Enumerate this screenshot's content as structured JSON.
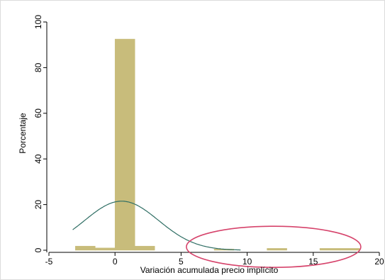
{
  "chart_data": {
    "type": "bar",
    "title": "",
    "xlabel": "Variación acumulada precio implícito",
    "ylabel": "Porcentaje",
    "xlim": [
      -5,
      20
    ],
    "ylim": [
      0,
      100
    ],
    "x_ticks": [
      -5,
      0,
      5,
      10,
      15,
      20
    ],
    "y_ticks": [
      0,
      20,
      40,
      60,
      80,
      100
    ],
    "x_tick_labels": [
      "-5",
      "0",
      "5",
      "10",
      "15",
      "20"
    ],
    "y_tick_labels": [
      "0",
      "20",
      "40",
      "60",
      "80",
      "100"
    ],
    "bin_width": 1.5,
    "bins": [
      {
        "x_start": -3.0,
        "x_end": -1.5,
        "value": 1.8
      },
      {
        "x_start": -1.5,
        "x_end": 0.0,
        "value": 1.0
      },
      {
        "x_start": 0.0,
        "x_end": 1.5,
        "value": 92.5
      },
      {
        "x_start": 1.5,
        "x_end": 3.0,
        "value": 1.8
      },
      {
        "x_start": 7.5,
        "x_end": 9.0,
        "value": 0.5
      },
      {
        "x_start": 11.5,
        "x_end": 13.0,
        "value": 0.8
      },
      {
        "x_start": 15.5,
        "x_end": 17.0,
        "value": 0.8
      },
      {
        "x_start": 17.0,
        "x_end": 18.5,
        "value": 0.8
      }
    ],
    "density_curve": {
      "type": "normal",
      "mean": 0.5,
      "sd": 2.8,
      "peak": 21.5,
      "x_range": [
        -3.2,
        9.5
      ]
    },
    "annotation": {
      "type": "ellipse",
      "center": [
        12.0,
        1.5
      ],
      "radius_x_units": 6.6,
      "radius_y_units": 9.0
    },
    "grid": false,
    "colors": {
      "bar_fill": "#c8bc7b",
      "curve": "#2f6e64",
      "ellipse": "#d6436b",
      "axis": "#000000"
    }
  }
}
